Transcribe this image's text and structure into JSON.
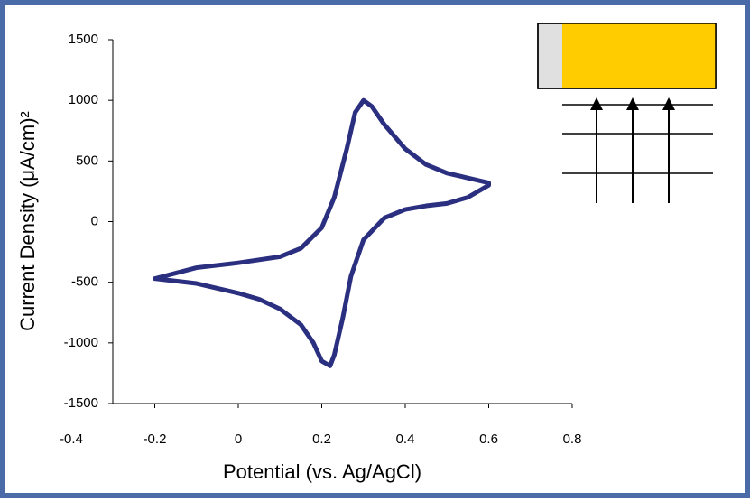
{
  "chart_data": {
    "type": "line",
    "xlabel": "Potential (vs. Ag/AgCl)",
    "ylabel": "Current Density (μA/cm)²",
    "x": [
      -0.2,
      -0.1,
      0,
      0.1,
      0.15,
      0.2,
      0.23,
      0.26,
      0.28,
      0.3,
      0.32,
      0.35,
      0.4,
      0.45,
      0.5,
      0.55,
      0.6,
      0.6,
      0.55,
      0.5,
      0.45,
      0.4,
      0.35,
      0.3,
      0.27,
      0.25,
      0.23,
      0.22,
      0.2,
      0.18,
      0.15,
      0.1,
      0.05,
      0,
      -0.05,
      -0.1,
      -0.2
    ],
    "series": [
      {
        "color": "#2b2f80",
        "values": [
          -470,
          -380,
          -340,
          -290,
          -220,
          -50,
          200,
          600,
          900,
          1000,
          950,
          800,
          600,
          470,
          400,
          360,
          320,
          300,
          200,
          150,
          130,
          100,
          30,
          -150,
          -450,
          -800,
          -1100,
          -1190,
          -1150,
          -1000,
          -850,
          -720,
          -640,
          -590,
          -550,
          -510,
          -470
        ]
      }
    ],
    "xlim": [
      -0.4,
      0.8
    ],
    "xticks": [
      -0.4,
      -0.2,
      0,
      0.2,
      0.4,
      0.6,
      0.8
    ],
    "ylim": [
      -1500,
      1500
    ],
    "yticks": [
      -1500,
      -1000,
      -500,
      0,
      500,
      1000,
      1500
    ]
  }
}
